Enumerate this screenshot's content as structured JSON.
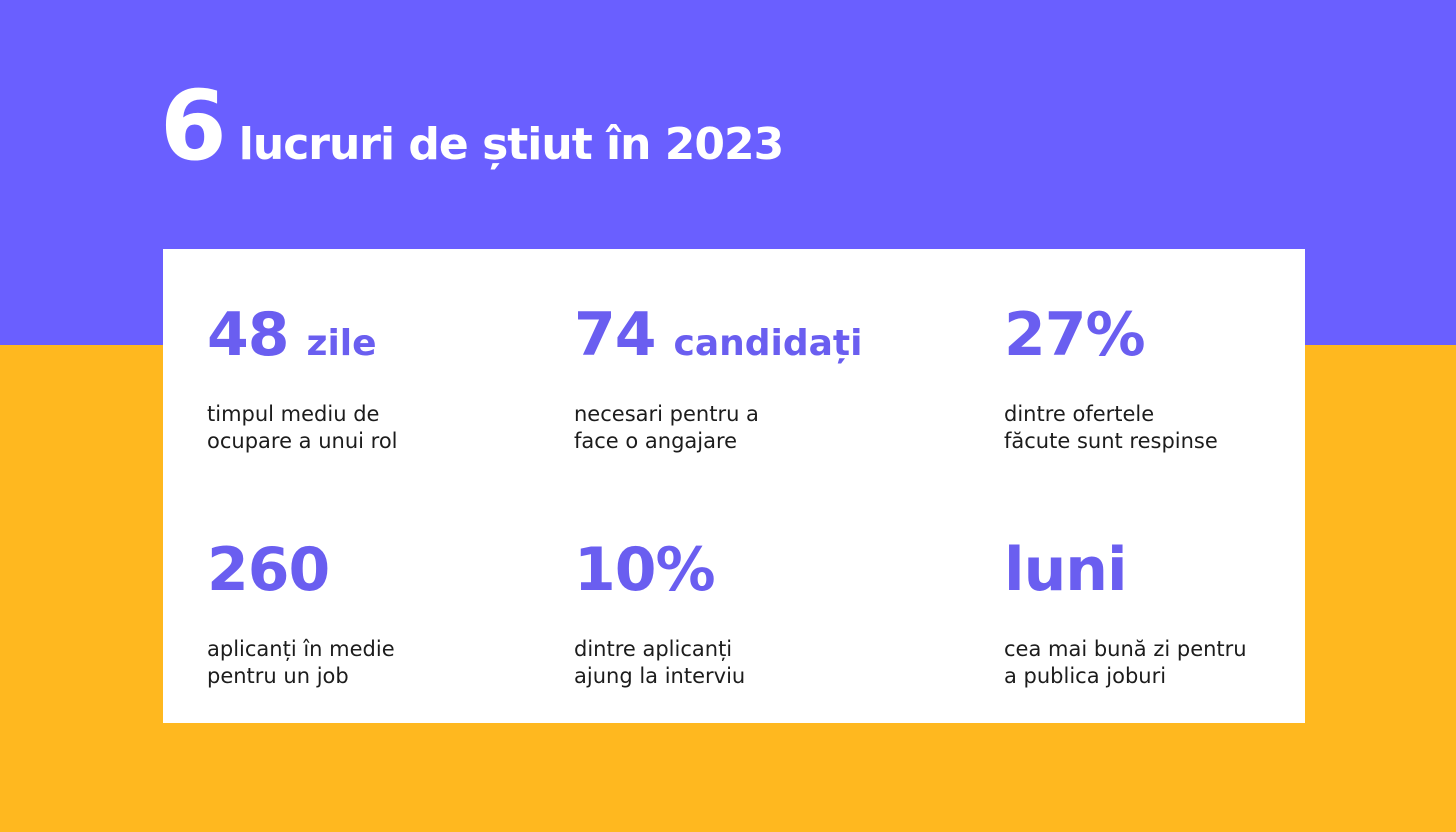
{
  "colors": {
    "top_background": "#6a5fff",
    "bottom_background": "#ffb81f",
    "card_background": "#ffffff",
    "accent": "#6a5ef0",
    "title_text": "#ffffff",
    "body_text": "#1c1c1c"
  },
  "title": {
    "number": "6",
    "text": "lucruri de știut în 2023"
  },
  "stats": [
    {
      "number": "48",
      "unit": "zile",
      "lines": [
        "timpul mediu de",
        "ocupare a unui rol"
      ]
    },
    {
      "number": "74",
      "unit": "candidați",
      "lines": [
        "necesari pentru a",
        "face o angajare"
      ]
    },
    {
      "number": "27%",
      "unit": "",
      "lines": [
        "dintre ofertele",
        "făcute sunt respinse"
      ]
    },
    {
      "number": "260",
      "unit": "",
      "lines": [
        "aplicanți în medie",
        "pentru un job"
      ]
    },
    {
      "number": "10%",
      "unit": "",
      "lines": [
        "dintre aplicanți",
        "ajung la interviu"
      ]
    },
    {
      "number": "luni",
      "unit": "",
      "lines": [
        "cea mai bună zi pentru",
        "a publica joburi"
      ]
    }
  ]
}
